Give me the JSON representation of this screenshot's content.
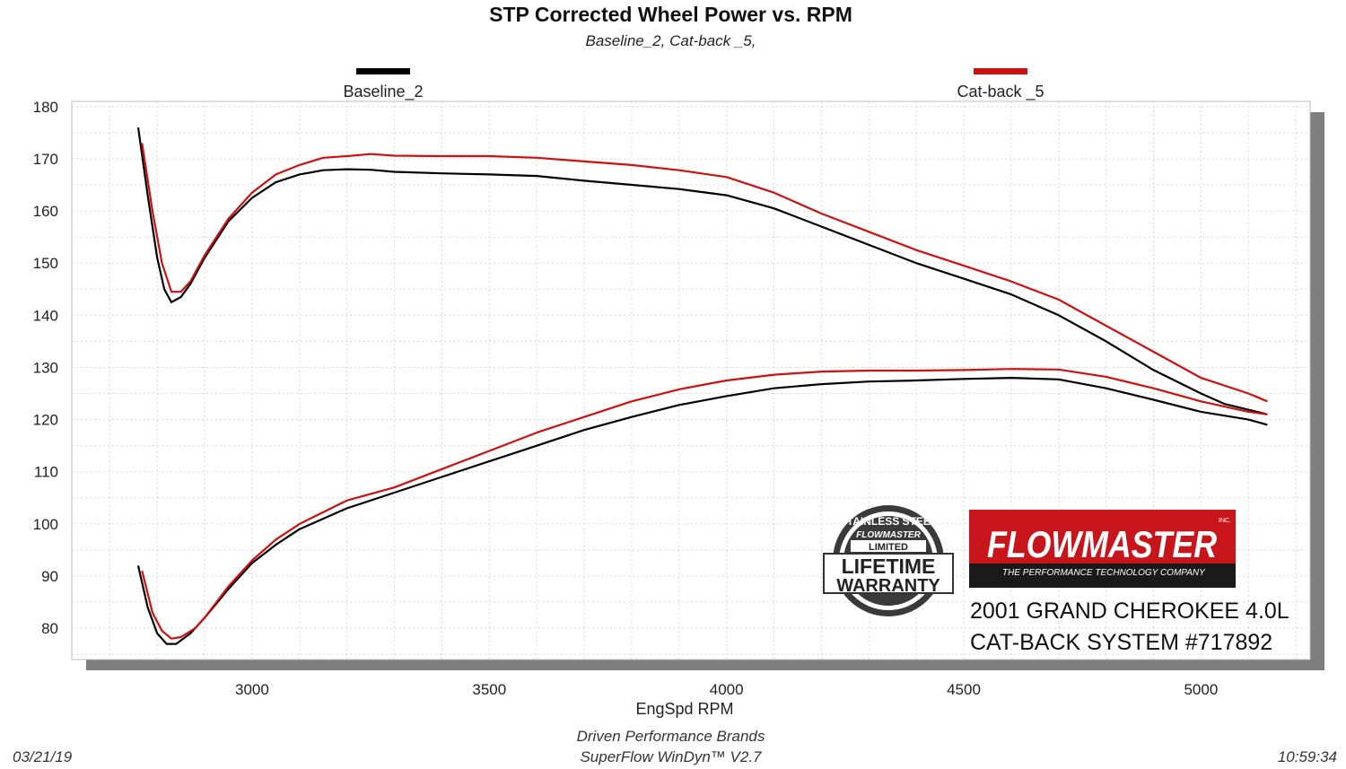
{
  "title": "STP Corrected Wheel Power vs. RPM",
  "subtitle": "Baseline_2, Cat-back _5,",
  "footer": {
    "date": "03/21/19",
    "time": "10:59:34",
    "company": "Driven Performance Brands",
    "software": "SuperFlow WinDyn™  V2.7"
  },
  "branding": {
    "warranty_text": [
      "STAINLESS STEEL",
      "FLOWMASTER",
      "LIMITED",
      "LIFETIME",
      "WARRANTY"
    ],
    "logo_text": "FLOWMASTER",
    "logo_tagline": "THE PERFORMANCE TECHNOLOGY COMPANY",
    "logo_inc": "INC.",
    "vehicle_line1": "2001 GRAND CHEROKEE 4.0L",
    "vehicle_line2": "CAT-BACK SYSTEM #717892"
  },
  "colors": {
    "baseline": "#000000",
    "catback": "#cc1111",
    "shadow": "#7f7f7f",
    "logo_bg": "#c8151b"
  },
  "chart_data": {
    "type": "line",
    "title": "STP Corrected Wheel Power vs. RPM",
    "xlabel": "EngSpd  RPM",
    "ylabel": "",
    "xlim": [
      2620,
      5230
    ],
    "ylim": [
      74,
      181
    ],
    "xticks": [
      3000,
      3500,
      4000,
      4500,
      5000
    ],
    "yticks": [
      80,
      90,
      100,
      110,
      120,
      130,
      140,
      150,
      160,
      170,
      180
    ],
    "grid": true,
    "legend_position": "top",
    "series": [
      {
        "name": "Baseline_2",
        "color": "#000000",
        "upper": [
          [
            2760,
            176
          ],
          [
            2780,
            163
          ],
          [
            2800,
            151
          ],
          [
            2815,
            145
          ],
          [
            2830,
            142.5
          ],
          [
            2850,
            143.5
          ],
          [
            2870,
            146
          ],
          [
            2900,
            151
          ],
          [
            2950,
            158
          ],
          [
            3000,
            162.5
          ],
          [
            3050,
            165.5
          ],
          [
            3100,
            167
          ],
          [
            3150,
            167.8
          ],
          [
            3200,
            168
          ],
          [
            3250,
            167.9
          ],
          [
            3300,
            167.5
          ],
          [
            3400,
            167.2
          ],
          [
            3500,
            167
          ],
          [
            3600,
            166.7
          ],
          [
            3700,
            165.8
          ],
          [
            3800,
            165
          ],
          [
            3900,
            164.2
          ],
          [
            4000,
            163
          ],
          [
            4100,
            160.5
          ],
          [
            4200,
            157
          ],
          [
            4300,
            153.5
          ],
          [
            4400,
            150
          ],
          [
            4500,
            147
          ],
          [
            4600,
            144
          ],
          [
            4700,
            140
          ],
          [
            4800,
            135
          ],
          [
            4900,
            129.5
          ],
          [
            5000,
            125
          ],
          [
            5050,
            123
          ],
          [
            5140,
            121
          ]
        ],
        "lower": [
          [
            2760,
            92
          ],
          [
            2780,
            84
          ],
          [
            2800,
            79
          ],
          [
            2820,
            77
          ],
          [
            2840,
            77
          ],
          [
            2870,
            79
          ],
          [
            2900,
            82
          ],
          [
            2950,
            87.5
          ],
          [
            3000,
            92.5
          ],
          [
            3050,
            96
          ],
          [
            3100,
            99
          ],
          [
            3200,
            103
          ],
          [
            3300,
            106
          ],
          [
            3400,
            109
          ],
          [
            3500,
            112
          ],
          [
            3600,
            115
          ],
          [
            3700,
            118
          ],
          [
            3800,
            120.5
          ],
          [
            3900,
            122.8
          ],
          [
            4000,
            124.5
          ],
          [
            4100,
            126
          ],
          [
            4200,
            126.8
          ],
          [
            4300,
            127.3
          ],
          [
            4400,
            127.5
          ],
          [
            4500,
            127.8
          ],
          [
            4600,
            128
          ],
          [
            4700,
            127.7
          ],
          [
            4800,
            126
          ],
          [
            4900,
            123.8
          ],
          [
            5000,
            121.5
          ],
          [
            5100,
            120
          ],
          [
            5140,
            119
          ]
        ]
      },
      {
        "name": "Cat-back _5",
        "color": "#cc1111",
        "upper": [
          [
            2768,
            173
          ],
          [
            2790,
            160
          ],
          [
            2810,
            150
          ],
          [
            2830,
            144.5
          ],
          [
            2850,
            144.5
          ],
          [
            2870,
            146.5
          ],
          [
            2900,
            151.5
          ],
          [
            2950,
            158.5
          ],
          [
            3000,
            163.5
          ],
          [
            3050,
            167
          ],
          [
            3100,
            168.8
          ],
          [
            3150,
            170.2
          ],
          [
            3200,
            170.5
          ],
          [
            3250,
            170.9
          ],
          [
            3300,
            170.6
          ],
          [
            3400,
            170.5
          ],
          [
            3500,
            170.5
          ],
          [
            3600,
            170.2
          ],
          [
            3700,
            169.5
          ],
          [
            3800,
            168.8
          ],
          [
            3900,
            167.8
          ],
          [
            4000,
            166.5
          ],
          [
            4100,
            163.5
          ],
          [
            4200,
            159.5
          ],
          [
            4300,
            156
          ],
          [
            4400,
            152.5
          ],
          [
            4500,
            149.5
          ],
          [
            4600,
            146.5
          ],
          [
            4700,
            143
          ],
          [
            4800,
            138
          ],
          [
            4900,
            133
          ],
          [
            5000,
            128
          ],
          [
            5100,
            125
          ],
          [
            5140,
            123.5
          ]
        ],
        "lower": [
          [
            2768,
            91
          ],
          [
            2790,
            83
          ],
          [
            2810,
            79.5
          ],
          [
            2830,
            78
          ],
          [
            2850,
            78.3
          ],
          [
            2880,
            80
          ],
          [
            2900,
            82
          ],
          [
            2950,
            88
          ],
          [
            3000,
            93
          ],
          [
            3050,
            97
          ],
          [
            3100,
            100
          ],
          [
            3200,
            104.5
          ],
          [
            3300,
            107
          ],
          [
            3400,
            110.5
          ],
          [
            3500,
            114
          ],
          [
            3600,
            117.5
          ],
          [
            3700,
            120.5
          ],
          [
            3800,
            123.5
          ],
          [
            3900,
            125.8
          ],
          [
            4000,
            127.5
          ],
          [
            4100,
            128.6
          ],
          [
            4200,
            129.2
          ],
          [
            4300,
            129.4
          ],
          [
            4400,
            129.4
          ],
          [
            4500,
            129.5
          ],
          [
            4600,
            129.7
          ],
          [
            4700,
            129.6
          ],
          [
            4800,
            128.2
          ],
          [
            4900,
            126
          ],
          [
            5000,
            123.5
          ],
          [
            5100,
            121.5
          ],
          [
            5140,
            121
          ]
        ]
      }
    ]
  }
}
